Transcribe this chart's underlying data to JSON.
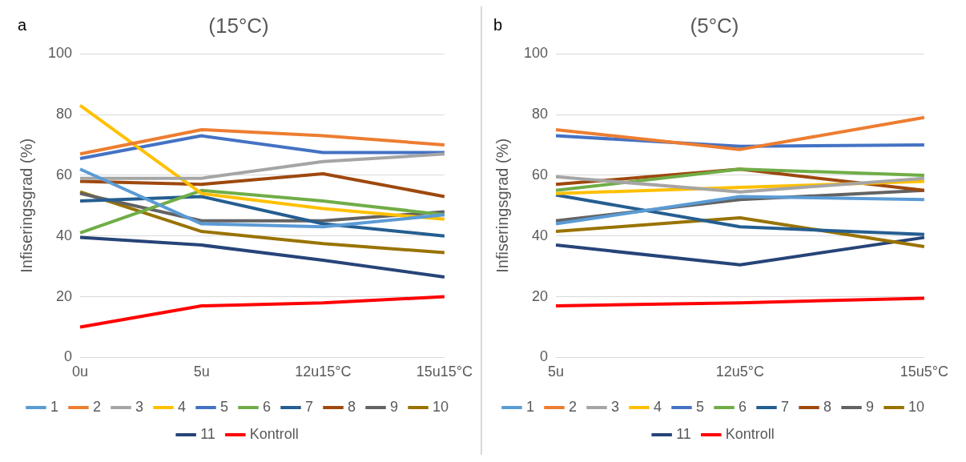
{
  "chart_data": [
    {
      "type": "line",
      "title": "(15°C)",
      "ylabel": "Infiseringsgrad (%)",
      "annotations": [
        "a"
      ],
      "categories": [
        "0u",
        "5u",
        "12u15°C",
        "15u15°C"
      ],
      "ylim": [
        0,
        100
      ],
      "yticks": [
        0,
        20,
        40,
        60,
        80,
        100
      ],
      "grid": "y",
      "legend": "bottom",
      "marker": "none",
      "line_style": "solid",
      "series": [
        {
          "name": "1",
          "color": "#5b9bd5",
          "values": [
            62,
            44,
            43,
            47
          ]
        },
        {
          "name": "2",
          "color": "#ed7d31",
          "values": [
            67,
            75,
            73,
            70
          ]
        },
        {
          "name": "3",
          "color": "#a5a5a5",
          "values": [
            59,
            59,
            64.5,
            67
          ]
        },
        {
          "name": "4",
          "color": "#ffc000",
          "values": [
            83,
            54,
            49,
            45.5
          ]
        },
        {
          "name": "5",
          "color": "#4472c4",
          "values": [
            65.5,
            73,
            67.5,
            67.5
          ]
        },
        {
          "name": "6",
          "color": "#70ad47",
          "values": [
            41,
            55,
            51.5,
            47
          ]
        },
        {
          "name": "7",
          "color": "#255e91",
          "values": [
            51.5,
            53,
            44,
            40
          ]
        },
        {
          "name": "8",
          "color": "#9e480e",
          "values": [
            58,
            57,
            60.5,
            53
          ]
        },
        {
          "name": "9",
          "color": "#636363",
          "values": [
            54,
            45,
            45,
            48
          ]
        },
        {
          "name": "10",
          "color": "#997300",
          "values": [
            54.5,
            41.5,
            37.5,
            34.5
          ]
        },
        {
          "name": "11",
          "color": "#264478",
          "values": [
            39.5,
            37,
            32,
            26.5
          ]
        },
        {
          "name": "Kontroll",
          "color": "#ff0000",
          "values": [
            10,
            17,
            18,
            20
          ]
        }
      ]
    },
    {
      "type": "line",
      "title": "(5°C)",
      "ylabel": "Infiseringsgrad (%)",
      "annotations": [
        "b"
      ],
      "categories": [
        "5u",
        "12u5°C",
        "15u5°C"
      ],
      "ylim": [
        0,
        100
      ],
      "yticks": [
        0,
        20,
        40,
        60,
        80,
        100
      ],
      "grid": "y",
      "legend": "bottom",
      "marker": "none",
      "line_style": "solid",
      "series": [
        {
          "name": "1",
          "color": "#5b9bd5",
          "values": [
            44,
            53,
            52
          ]
        },
        {
          "name": "2",
          "color": "#ed7d31",
          "values": [
            75,
            68.5,
            79
          ]
        },
        {
          "name": "3",
          "color": "#a5a5a5",
          "values": [
            59.5,
            54.5,
            59
          ]
        },
        {
          "name": "4",
          "color": "#ffc000",
          "values": [
            54,
            56,
            58
          ]
        },
        {
          "name": "5",
          "color": "#4472c4",
          "values": [
            73,
            69.5,
            70
          ]
        },
        {
          "name": "6",
          "color": "#70ad47",
          "values": [
            55,
            62,
            60
          ]
        },
        {
          "name": "7",
          "color": "#255e91",
          "values": [
            53.5,
            43,
            40.5
          ]
        },
        {
          "name": "8",
          "color": "#9e480e",
          "values": [
            57,
            62,
            55
          ]
        },
        {
          "name": "9",
          "color": "#636363",
          "values": [
            45,
            52,
            55
          ]
        },
        {
          "name": "10",
          "color": "#997300",
          "values": [
            41.5,
            46,
            36.5
          ]
        },
        {
          "name": "11",
          "color": "#264478",
          "values": [
            37,
            30.5,
            39.5
          ]
        },
        {
          "name": "Kontroll",
          "color": "#ff0000",
          "values": [
            17,
            18,
            19.5
          ]
        }
      ]
    }
  ]
}
